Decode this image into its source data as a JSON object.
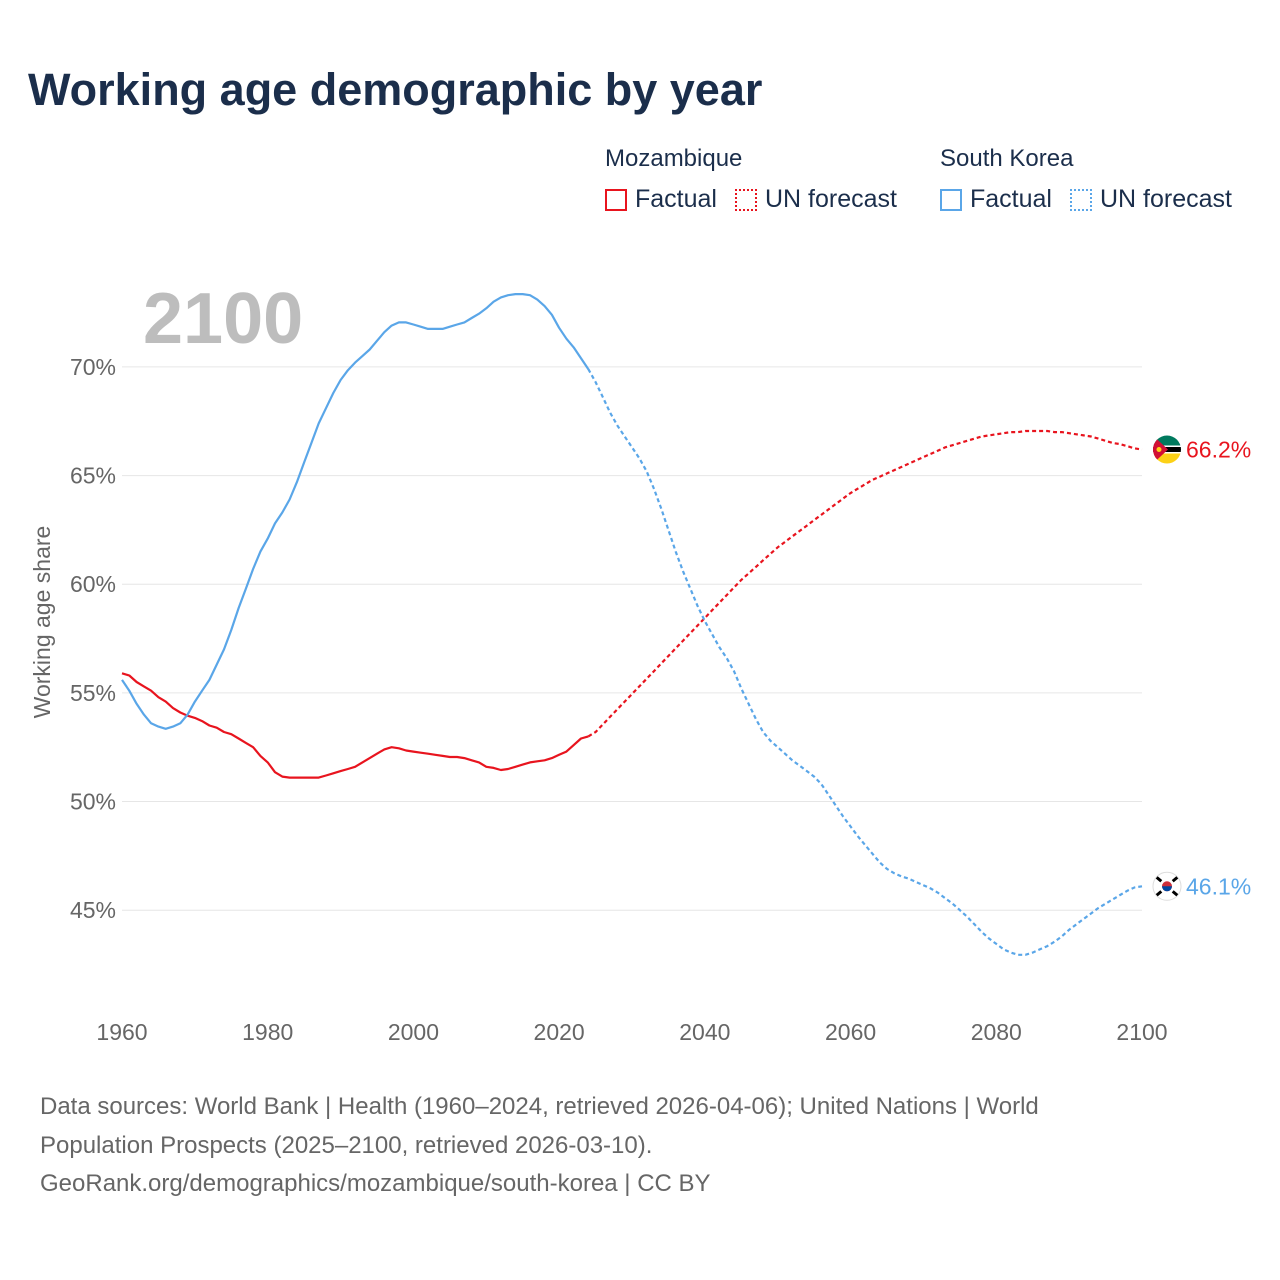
{
  "title": "Working age demographic by year",
  "colors": {
    "mozambique": "#e8141e",
    "south_korea": "#5aa6e8",
    "grid": "#e6e6e6",
    "axis_text": "#666666",
    "year_watermark": "#bdbdbd",
    "title": "#1b2e4b"
  },
  "legend": {
    "groups": [
      {
        "name": "Mozambique",
        "factual_label": "Factual",
        "forecast_label": "UN forecast",
        "color": "#e8141e"
      },
      {
        "name": "South Korea",
        "factual_label": "Factual",
        "forecast_label": "UN forecast",
        "color": "#5aa6e8"
      }
    ]
  },
  "chart_data": {
    "type": "line",
    "title": "Working age demographic by year",
    "xlabel": "",
    "ylabel": "Working age share",
    "xlim": [
      1960,
      2100
    ],
    "ylim": [
      40.5,
      74
    ],
    "x_ticks": [
      1960,
      1980,
      2000,
      2020,
      2040,
      2060,
      2080,
      2100
    ],
    "x_tick_labels": [
      "1960",
      "1980",
      "2000",
      "2020",
      "2040",
      "2060",
      "2080",
      "2100"
    ],
    "y_ticks": [
      45,
      50,
      55,
      60,
      65,
      70
    ],
    "y_tick_labels": [
      "45%",
      "50%",
      "55%",
      "60%",
      "65%",
      "70%"
    ],
    "year_label": "2100",
    "forecast_start": 2024,
    "series": [
      {
        "name": "Mozambique",
        "color": "#e8141e",
        "flag_icon": "mozambique-flag-icon",
        "end_label": "66.2%",
        "points": [
          [
            1960,
            55.9
          ],
          [
            1961,
            55.8
          ],
          [
            1962,
            55.5
          ],
          [
            1963,
            55.3
          ],
          [
            1964,
            55.1
          ],
          [
            1965,
            54.8
          ],
          [
            1966,
            54.6
          ],
          [
            1967,
            54.3
          ],
          [
            1968,
            54.1
          ],
          [
            1969,
            53.95
          ],
          [
            1970,
            53.85
          ],
          [
            1971,
            53.7
          ],
          [
            1972,
            53.5
          ],
          [
            1973,
            53.4
          ],
          [
            1974,
            53.2
          ],
          [
            1975,
            53.1
          ],
          [
            1976,
            52.9
          ],
          [
            1977,
            52.7
          ],
          [
            1978,
            52.5
          ],
          [
            1979,
            52.1
          ],
          [
            1980,
            51.8
          ],
          [
            1981,
            51.35
          ],
          [
            1982,
            51.15
          ],
          [
            1983,
            51.1
          ],
          [
            1984,
            51.1
          ],
          [
            1985,
            51.1
          ],
          [
            1986,
            51.1
          ],
          [
            1987,
            51.1
          ],
          [
            1988,
            51.2
          ],
          [
            1989,
            51.3
          ],
          [
            1990,
            51.4
          ],
          [
            1991,
            51.5
          ],
          [
            1992,
            51.6
          ],
          [
            1993,
            51.8
          ],
          [
            1994,
            52.0
          ],
          [
            1995,
            52.2
          ],
          [
            1996,
            52.4
          ],
          [
            1997,
            52.5
          ],
          [
            1998,
            52.45
          ],
          [
            1999,
            52.35
          ],
          [
            2000,
            52.3
          ],
          [
            2001,
            52.25
          ],
          [
            2002,
            52.2
          ],
          [
            2003,
            52.15
          ],
          [
            2004,
            52.1
          ],
          [
            2005,
            52.05
          ],
          [
            2006,
            52.05
          ],
          [
            2007,
            52.0
          ],
          [
            2008,
            51.9
          ],
          [
            2009,
            51.8
          ],
          [
            2010,
            51.6
          ],
          [
            2011,
            51.55
          ],
          [
            2012,
            51.45
          ],
          [
            2013,
            51.5
          ],
          [
            2014,
            51.6
          ],
          [
            2015,
            51.7
          ],
          [
            2016,
            51.8
          ],
          [
            2017,
            51.85
          ],
          [
            2018,
            51.9
          ],
          [
            2019,
            52.0
          ],
          [
            2020,
            52.15
          ],
          [
            2021,
            52.3
          ],
          [
            2022,
            52.6
          ],
          [
            2023,
            52.9
          ],
          [
            2024,
            53.0
          ],
          [
            2025,
            53.2
          ],
          [
            2026,
            53.55
          ],
          [
            2027,
            53.9
          ],
          [
            2028,
            54.25
          ],
          [
            2029,
            54.6
          ],
          [
            2030,
            54.95
          ],
          [
            2031,
            55.3
          ],
          [
            2032,
            55.65
          ],
          [
            2033,
            56.0
          ],
          [
            2034,
            56.35
          ],
          [
            2035,
            56.7
          ],
          [
            2036,
            57.05
          ],
          [
            2037,
            57.4
          ],
          [
            2038,
            57.75
          ],
          [
            2039,
            58.1
          ],
          [
            2040,
            58.45
          ],
          [
            2041,
            58.8
          ],
          [
            2042,
            59.15
          ],
          [
            2043,
            59.5
          ],
          [
            2044,
            59.85
          ],
          [
            2045,
            60.2
          ],
          [
            2046,
            60.5
          ],
          [
            2047,
            60.8
          ],
          [
            2048,
            61.1
          ],
          [
            2049,
            61.4
          ],
          [
            2050,
            61.7
          ],
          [
            2051,
            61.95
          ],
          [
            2052,
            62.2
          ],
          [
            2053,
            62.45
          ],
          [
            2054,
            62.7
          ],
          [
            2055,
            62.95
          ],
          [
            2056,
            63.2
          ],
          [
            2057,
            63.45
          ],
          [
            2058,
            63.7
          ],
          [
            2059,
            63.95
          ],
          [
            2060,
            64.2
          ],
          [
            2061,
            64.4
          ],
          [
            2062,
            64.6
          ],
          [
            2063,
            64.8
          ],
          [
            2064,
            64.95
          ],
          [
            2065,
            65.1
          ],
          [
            2066,
            65.25
          ],
          [
            2067,
            65.4
          ],
          [
            2068,
            65.55
          ],
          [
            2069,
            65.7
          ],
          [
            2070,
            65.85
          ],
          [
            2071,
            66.0
          ],
          [
            2072,
            66.15
          ],
          [
            2073,
            66.3
          ],
          [
            2074,
            66.4
          ],
          [
            2075,
            66.5
          ],
          [
            2076,
            66.6
          ],
          [
            2077,
            66.7
          ],
          [
            2078,
            66.8
          ],
          [
            2079,
            66.85
          ],
          [
            2080,
            66.9
          ],
          [
            2081,
            66.95
          ],
          [
            2082,
            67.0
          ],
          [
            2083,
            67.0
          ],
          [
            2084,
            67.05
          ],
          [
            2085,
            67.05
          ],
          [
            2086,
            67.05
          ],
          [
            2087,
            67.05
          ],
          [
            2088,
            67.0
          ],
          [
            2089,
            67.0
          ],
          [
            2090,
            66.95
          ],
          [
            2091,
            66.9
          ],
          [
            2092,
            66.85
          ],
          [
            2093,
            66.8
          ],
          [
            2094,
            66.7
          ],
          [
            2095,
            66.6
          ],
          [
            2096,
            66.5
          ],
          [
            2097,
            66.45
          ],
          [
            2098,
            66.35
          ],
          [
            2099,
            66.25
          ],
          [
            2100,
            66.2
          ]
        ]
      },
      {
        "name": "South Korea",
        "color": "#5aa6e8",
        "flag_icon": "south-korea-flag-icon",
        "end_label": "46.1%",
        "points": [
          [
            1960,
            55.6
          ],
          [
            1961,
            55.1
          ],
          [
            1962,
            54.5
          ],
          [
            1963,
            54.0
          ],
          [
            1964,
            53.6
          ],
          [
            1965,
            53.45
          ],
          [
            1966,
            53.35
          ],
          [
            1967,
            53.45
          ],
          [
            1968,
            53.6
          ],
          [
            1969,
            54.0
          ],
          [
            1970,
            54.6
          ],
          [
            1971,
            55.1
          ],
          [
            1972,
            55.6
          ],
          [
            1973,
            56.3
          ],
          [
            1974,
            57.0
          ],
          [
            1975,
            57.9
          ],
          [
            1976,
            58.9
          ],
          [
            1977,
            59.8
          ],
          [
            1978,
            60.7
          ],
          [
            1979,
            61.5
          ],
          [
            1980,
            62.1
          ],
          [
            1981,
            62.8
          ],
          [
            1982,
            63.3
          ],
          [
            1983,
            63.9
          ],
          [
            1984,
            64.7
          ],
          [
            1985,
            65.6
          ],
          [
            1986,
            66.5
          ],
          [
            1987,
            67.4
          ],
          [
            1988,
            68.1
          ],
          [
            1989,
            68.8
          ],
          [
            1990,
            69.4
          ],
          [
            1991,
            69.85
          ],
          [
            1992,
            70.2
          ],
          [
            1993,
            70.5
          ],
          [
            1994,
            70.8
          ],
          [
            1995,
            71.2
          ],
          [
            1996,
            71.6
          ],
          [
            1997,
            71.9
          ],
          [
            1998,
            72.05
          ],
          [
            1999,
            72.05
          ],
          [
            2000,
            71.95
          ],
          [
            2001,
            71.85
          ],
          [
            2002,
            71.75
          ],
          [
            2003,
            71.75
          ],
          [
            2004,
            71.75
          ],
          [
            2005,
            71.85
          ],
          [
            2006,
            71.95
          ],
          [
            2007,
            72.05
          ],
          [
            2008,
            72.25
          ],
          [
            2009,
            72.45
          ],
          [
            2010,
            72.7
          ],
          [
            2011,
            73.0
          ],
          [
            2012,
            73.2
          ],
          [
            2013,
            73.3
          ],
          [
            2014,
            73.35
          ],
          [
            2015,
            73.35
          ],
          [
            2016,
            73.3
          ],
          [
            2017,
            73.1
          ],
          [
            2018,
            72.8
          ],
          [
            2019,
            72.4
          ],
          [
            2020,
            71.8
          ],
          [
            2021,
            71.3
          ],
          [
            2022,
            70.9
          ],
          [
            2023,
            70.4
          ],
          [
            2024,
            69.9
          ],
          [
            2025,
            69.3
          ],
          [
            2026,
            68.6
          ],
          [
            2027,
            67.9
          ],
          [
            2028,
            67.3
          ],
          [
            2029,
            66.8
          ],
          [
            2030,
            66.3
          ],
          [
            2031,
            65.8
          ],
          [
            2032,
            65.2
          ],
          [
            2033,
            64.4
          ],
          [
            2034,
            63.5
          ],
          [
            2035,
            62.5
          ],
          [
            2036,
            61.5
          ],
          [
            2037,
            60.6
          ],
          [
            2038,
            59.8
          ],
          [
            2039,
            59.0
          ],
          [
            2040,
            58.3
          ],
          [
            2041,
            57.7
          ],
          [
            2042,
            57.1
          ],
          [
            2043,
            56.6
          ],
          [
            2044,
            56.0
          ],
          [
            2045,
            55.2
          ],
          [
            2046,
            54.5
          ],
          [
            2047,
            53.8
          ],
          [
            2048,
            53.2
          ],
          [
            2049,
            52.8
          ],
          [
            2050,
            52.5
          ],
          [
            2051,
            52.2
          ],
          [
            2052,
            51.9
          ],
          [
            2053,
            51.65
          ],
          [
            2054,
            51.4
          ],
          [
            2055,
            51.15
          ],
          [
            2056,
            50.8
          ],
          [
            2057,
            50.3
          ],
          [
            2058,
            49.8
          ],
          [
            2059,
            49.3
          ],
          [
            2060,
            48.85
          ],
          [
            2061,
            48.4
          ],
          [
            2062,
            48.0
          ],
          [
            2063,
            47.6
          ],
          [
            2064,
            47.2
          ],
          [
            2065,
            46.9
          ],
          [
            2066,
            46.7
          ],
          [
            2067,
            46.55
          ],
          [
            2068,
            46.45
          ],
          [
            2069,
            46.3
          ],
          [
            2070,
            46.15
          ],
          [
            2071,
            46.0
          ],
          [
            2072,
            45.8
          ],
          [
            2073,
            45.55
          ],
          [
            2074,
            45.3
          ],
          [
            2075,
            45.0
          ],
          [
            2076,
            44.7
          ],
          [
            2077,
            44.35
          ],
          [
            2078,
            44.0
          ],
          [
            2079,
            43.7
          ],
          [
            2080,
            43.45
          ],
          [
            2081,
            43.2
          ],
          [
            2082,
            43.05
          ],
          [
            2083,
            42.95
          ],
          [
            2084,
            42.95
          ],
          [
            2085,
            43.05
          ],
          [
            2086,
            43.2
          ],
          [
            2087,
            43.35
          ],
          [
            2088,
            43.55
          ],
          [
            2089,
            43.8
          ],
          [
            2090,
            44.1
          ],
          [
            2091,
            44.35
          ],
          [
            2092,
            44.6
          ],
          [
            2093,
            44.85
          ],
          [
            2094,
            45.1
          ],
          [
            2095,
            45.3
          ],
          [
            2096,
            45.5
          ],
          [
            2097,
            45.7
          ],
          [
            2098,
            45.9
          ],
          [
            2099,
            46.05
          ],
          [
            2100,
            46.1
          ]
        ]
      }
    ]
  },
  "source": {
    "line1": "Data sources: World Bank | Health (1960–2024, retrieved 2026-04-06); United Nations | World",
    "line2": "Population Prospects (2025–2100, retrieved 2026-03-10).",
    "line3": "GeoRank.org/demographics/mozambique/south-korea | CC BY"
  }
}
